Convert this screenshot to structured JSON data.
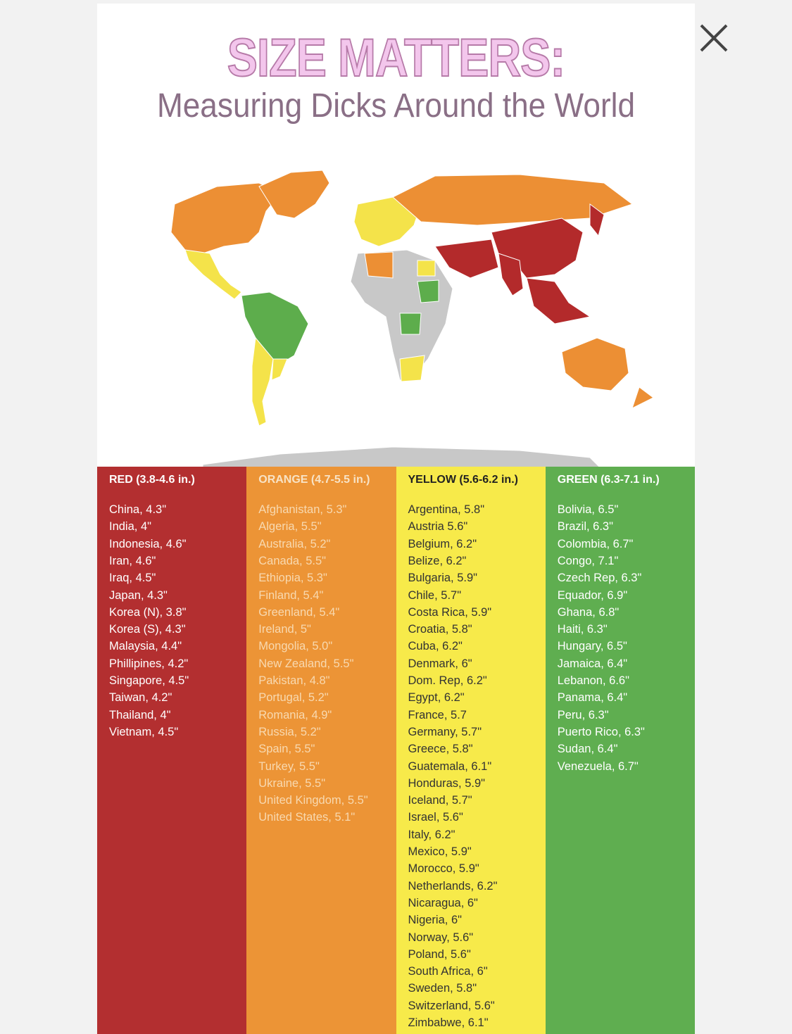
{
  "title": "SIZE MATTERS:",
  "subtitle": "Measuring Dicks Around the World",
  "columns": [
    {
      "heading": "RED (3.8-4.6 in.)",
      "items": [
        "China, 4.3\"",
        "India, 4\"",
        "Indonesia, 4.6\"",
        "Iran, 4.6\"",
        "Iraq, 4.5\"",
        "Japan, 4.3\"",
        "Korea (N), 3.8\"",
        "Korea (S), 4.3\"",
        "Malaysia, 4.4\"",
        "Phillipines, 4.2\"",
        "Singapore, 4.5\"",
        "Taiwan, 4.2\"",
        "Thailand, 4\"",
        "Vietnam, 4.5\""
      ]
    },
    {
      "heading": "ORANGE (4.7-5.5 in.)",
      "items": [
        "Afghanistan, 5.3\"",
        "Algeria, 5.5\"",
        "Australia, 5.2\"",
        "Canada, 5.5\"",
        "Ethiopia, 5.3\"",
        "Finland, 5.4\"",
        "Greenland, 5.4\"",
        "Ireland, 5\"",
        "Mongolia, 5.0\"",
        "New Zealand, 5.5\"",
        "Pakistan, 4.8\"",
        "Portugal, 5.2\"",
        "Romania, 4.9\"",
        "Russia, 5.2\"",
        "Spain, 5.5\"",
        "Turkey, 5.5\"",
        "Ukraine, 5.5\"",
        "United Kingdom, 5.5\"",
        "United States, 5.1\""
      ]
    },
    {
      "heading": "YELLOW (5.6-6.2 in.)",
      "items": [
        "Argentina, 5.8\"",
        "Austria 5.6\"",
        "Belgium, 6.2\"",
        "Belize, 6.2\"",
        "Bulgaria, 5.9\"",
        "Chile, 5.7\"",
        "Costa Rica, 5.9\"",
        "Croatia, 5.8\"",
        "Cuba, 6.2\"",
        "Denmark, 6\"",
        "Dom. Rep, 6.2\"",
        "Egypt, 6.2\"",
        "France, 5.7",
        "Germany, 5.7\"",
        "Greece, 5.8\"",
        "Guatemala, 6.1\"",
        "Honduras, 5.9\"",
        "Iceland, 5.7\"",
        "Israel, 5.6\"",
        "Italy, 6.2\"",
        "Mexico, 5.9\"",
        "Morocco, 5.9\"",
        "Netherlands, 6.2\"",
        "Nicaragua, 6\"",
        "Nigeria, 6\"",
        "Norway, 5.6\"",
        "Poland, 5.6\"",
        "South Africa, 6\"",
        "Sweden, 5.8\"",
        "Switzerland, 5.6\"",
        "Zimbabwe, 6.1\""
      ]
    },
    {
      "heading": "GREEN (6.3-7.1 in.)",
      "items": [
        "Bolivia, 6.5\"",
        "Brazil, 6.3\"",
        "Colombia, 6.7\"",
        "Congo, 7.1\"",
        "Czech Rep, 6.3\"",
        "Equador, 6.9\"",
        "Ghana, 6.8\"",
        "Haiti, 6.3\"",
        "Hungary, 6.5\"",
        "Jamaica, 6.4\"",
        "Lebanon, 6.6\"",
        "Panama, 6.4\"",
        "Peru, 6.3\"",
        "Puerto Rico, 6.3\"",
        "Sudan, 6.4\"",
        "Venezuela, 6.7\""
      ]
    }
  ]
}
